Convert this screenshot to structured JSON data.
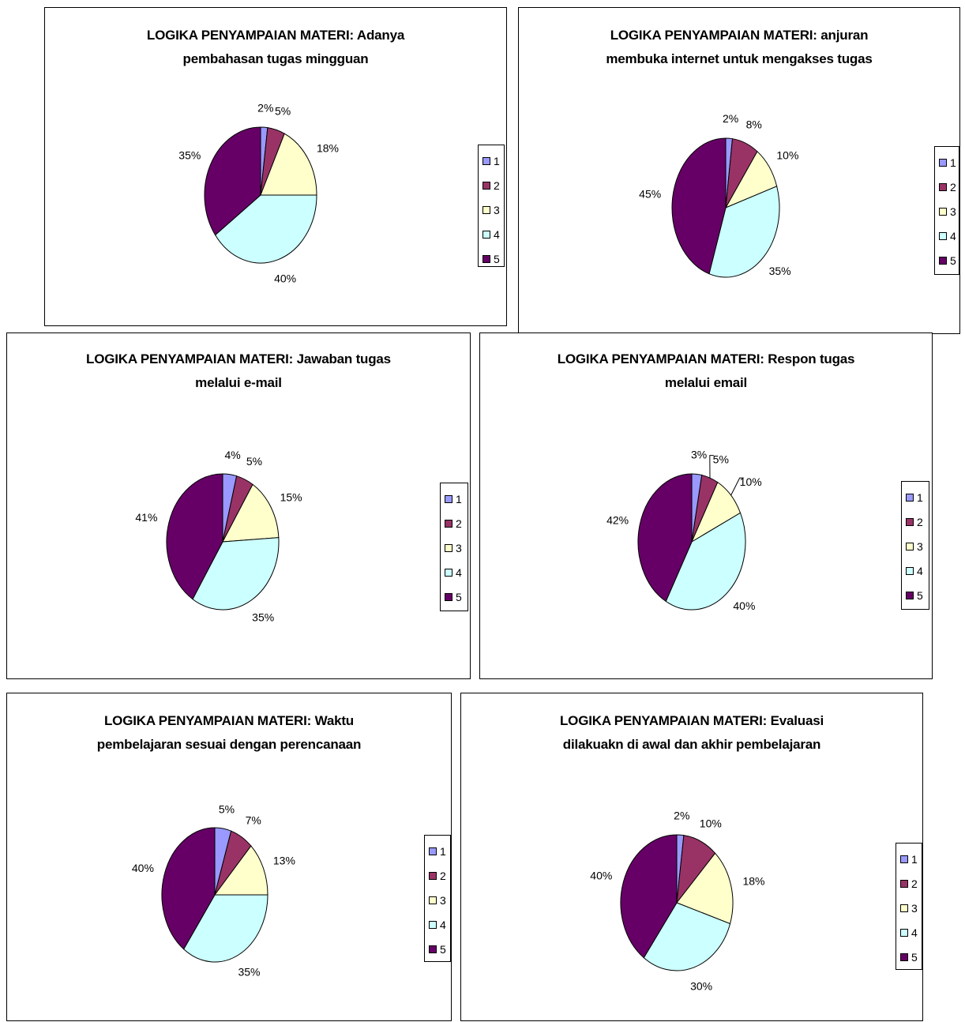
{
  "colors": {
    "1": "#9999ff",
    "2": "#993366",
    "3": "#ffffcc",
    "4": "#ccffff",
    "5": "#660066"
  },
  "chart_data": [
    {
      "type": "pie",
      "title": [
        "LOGIKA PENYAMPAIAN MATERI: Adanya",
        "pembahasan tugas mingguan"
      ],
      "categories": [
        "1",
        "2",
        "3",
        "4",
        "5"
      ],
      "values": [
        2,
        5,
        18,
        40,
        35
      ],
      "labels": [
        "2%",
        "5%",
        "18%",
        "40%",
        "35%"
      ],
      "legend": "right"
    },
    {
      "type": "pie",
      "title": [
        "LOGIKA PENYAMPAIAN MATERI: anjuran",
        "membuka internet untuk mengakses tugas"
      ],
      "categories": [
        "1",
        "2",
        "3",
        "4",
        "5"
      ],
      "values": [
        2,
        8,
        10,
        35,
        45
      ],
      "labels": [
        "2%",
        "8%",
        "10%",
        "35%",
        "45%"
      ],
      "legend": "right"
    },
    {
      "type": "pie",
      "title": [
        "LOGIKA PENYAMPAIAN MATERI: Jawaban tugas",
        "melalui e-mail"
      ],
      "categories": [
        "1",
        "2",
        "3",
        "4",
        "5"
      ],
      "values": [
        4,
        5,
        15,
        35,
        41
      ],
      "labels": [
        "4%",
        "5%",
        "15%",
        "35%",
        "41%"
      ],
      "legend": "right"
    },
    {
      "type": "pie",
      "title": [
        "LOGIKA PENYAMPAIAN MATERI: Respon tugas",
        "melalui email"
      ],
      "categories": [
        "1",
        "2",
        "3",
        "4",
        "5"
      ],
      "values": [
        3,
        5,
        10,
        40,
        42
      ],
      "labels": [
        "3%",
        "5%",
        "10%",
        "40%",
        "42%"
      ],
      "legend": "right"
    },
    {
      "type": "pie",
      "title": [
        "LOGIKA PENYAMPAIAN MATERI: Waktu",
        "pembelajaran sesuai dengan perencanaan"
      ],
      "categories": [
        "1",
        "2",
        "3",
        "4",
        "5"
      ],
      "values": [
        5,
        7,
        13,
        35,
        40
      ],
      "labels": [
        "5%",
        "7%",
        "13%",
        "35%",
        "40%"
      ],
      "legend": "right"
    },
    {
      "type": "pie",
      "title": [
        "LOGIKA PENYAMPAIAN MATERI: Evaluasi",
        "dilakuakn di awal dan akhir pembelajaran"
      ],
      "categories": [
        "1",
        "2",
        "3",
        "4",
        "5"
      ],
      "values": [
        2,
        10,
        18,
        30,
        40
      ],
      "labels": [
        "2%",
        "10%",
        "18%",
        "30%",
        "40%"
      ],
      "legend": "right"
    }
  ]
}
